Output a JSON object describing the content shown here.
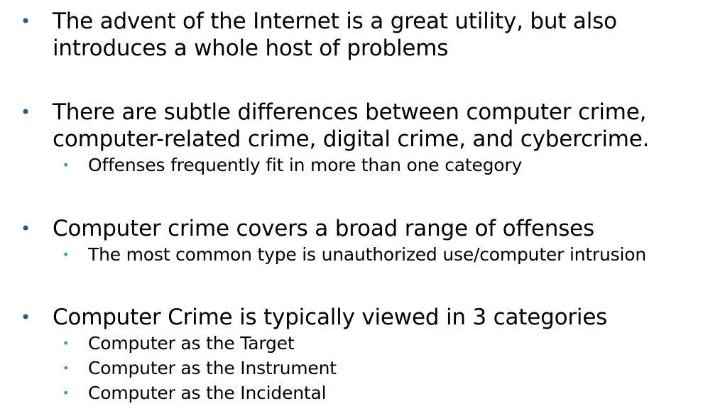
{
  "bullets": [
    {
      "lines": [
        "The advent of the Internet is a great utility, but also",
        "introduces a whole host of problems"
      ],
      "sub": []
    },
    {
      "lines": [
        "There are subtle differences between computer crime,",
        "computer-related crime, digital crime, and cybercrime."
      ],
      "sub": [
        "Offenses frequently fit in more than one category"
      ]
    },
    {
      "lines": [
        "Computer crime covers a broad range of offenses"
      ],
      "sub": [
        "The most common type is unauthorized use/computer intrusion"
      ]
    },
    {
      "lines": [
        "Computer Crime is typically viewed in 3 categories"
      ],
      "sub": [
        "Computer as the Target",
        "Computer as the Instrument",
        "Computer as the Incidental"
      ]
    }
  ],
  "glyphs": {
    "main_bullet": "•",
    "sub_bullet": "•"
  },
  "colors": {
    "main_bullet": "#1f5a96",
    "sub_bullet": "#2a8fd0",
    "text": "#000000"
  }
}
